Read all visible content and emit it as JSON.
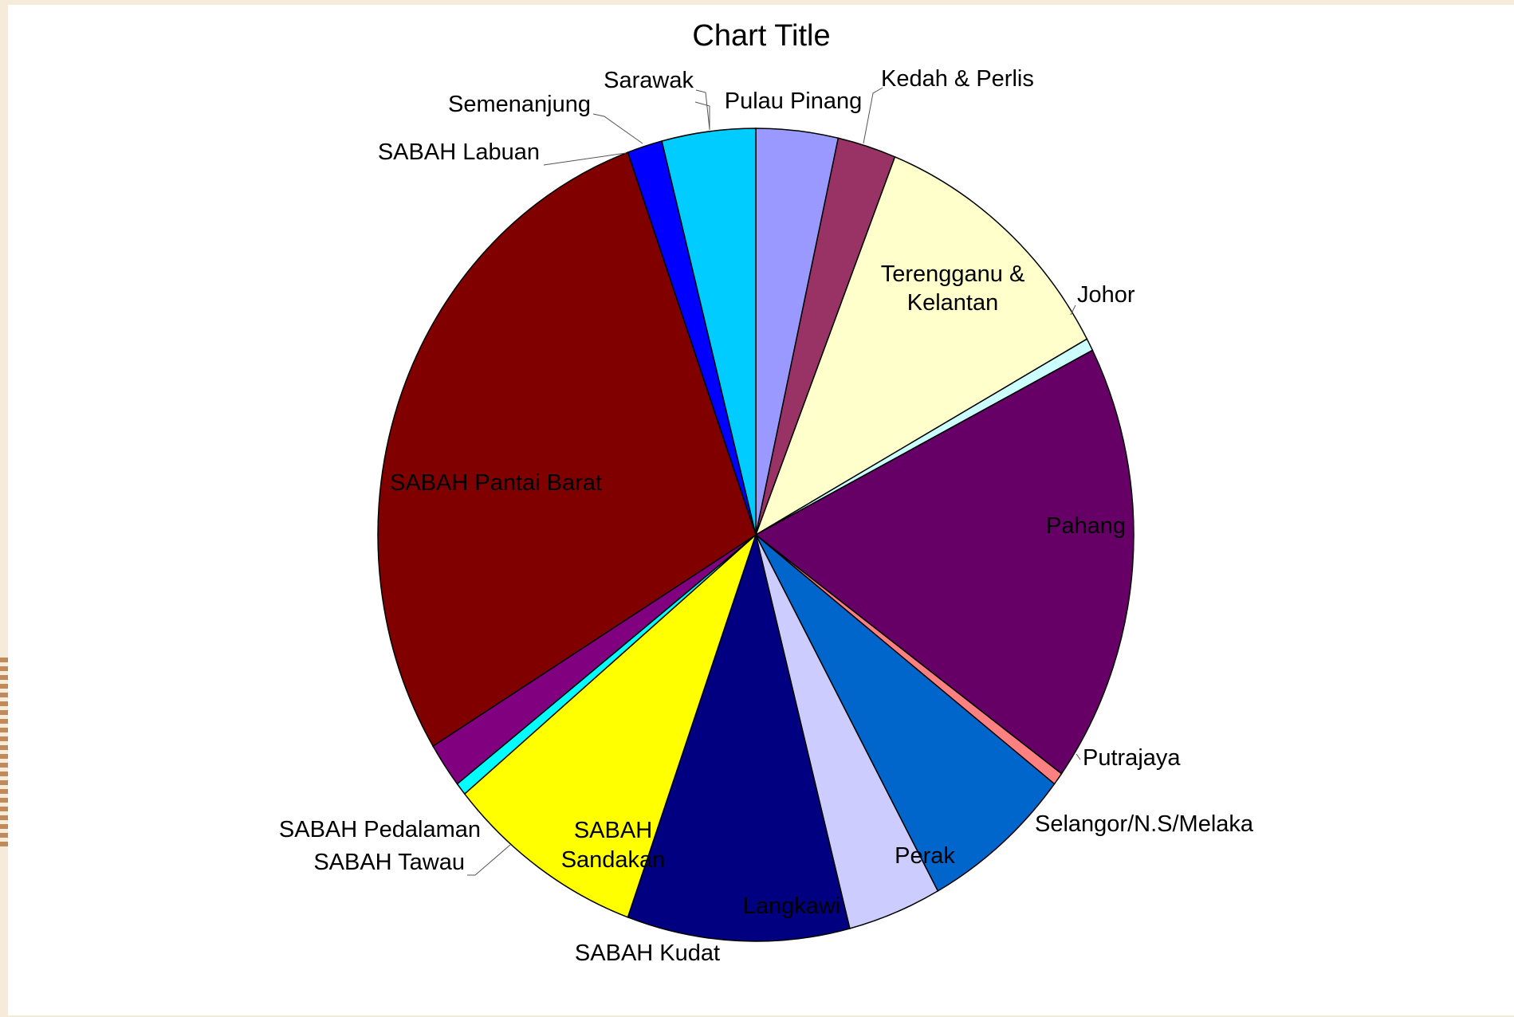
{
  "chart_data": {
    "type": "pie",
    "title": "Chart Title",
    "slices": [
      {
        "label": "Pulau Pinang",
        "value": 3.5,
        "color": "#9999ff"
      },
      {
        "label": "Kedah & Perlis",
        "value": 2.5,
        "color": "#993366"
      },
      {
        "label": "Terengganu & Kelantan",
        "value": 11.0,
        "color": "#ffffcc"
      },
      {
        "label": "Johor",
        "value": 0.5,
        "color": "#ccffff"
      },
      {
        "label": "Pahang",
        "value": 17.5,
        "color": "#660066"
      },
      {
        "label": "Putrajaya",
        "value": 0.5,
        "color": "#ff8080"
      },
      {
        "label": "Selangor/N.S/Melaka",
        "value": 6.5,
        "color": "#0066cc"
      },
      {
        "label": "Perak",
        "value": 4.0,
        "color": "#ccccff"
      },
      {
        "label": "Langkawi",
        "value": 9.5,
        "color": "#000080"
      },
      {
        "label": "SABAH Kudat",
        "value": 8.5,
        "color": "#ffff00"
      },
      {
        "label": "SABAH Tawau",
        "value": 0.5,
        "color": "#00ffff"
      },
      {
        "label": "SABAH Pedalaman",
        "value": 1.8,
        "color": "#800080"
      },
      {
        "label": "SABAH Pantai Barat",
        "value": 28.2,
        "color": "#800000"
      },
      {
        "label": "SABAH Labuan",
        "value": 0.0,
        "color": "#0000ff"
      },
      {
        "label": "Semenanjung",
        "value": 1.5,
        "color": "#0000ff"
      },
      {
        "label": "Sarawak",
        "value": 4.0,
        "color": "#00ccff"
      }
    ],
    "data_labels": [
      {
        "text": "Pulau Pinang"
      },
      {
        "text": "Kedah & Perlis"
      },
      {
        "text": "Terengganu &"
      },
      {
        "text": "Kelantan"
      },
      {
        "text": "Johor"
      },
      {
        "text": "Pahang"
      },
      {
        "text": "Putrajaya"
      },
      {
        "text": "Selangor/N.S/Melaka"
      },
      {
        "text": "Perak"
      },
      {
        "text": "Langkawi"
      },
      {
        "text": "SABAH Kudat"
      },
      {
        "text": "SABAH"
      },
      {
        "text": "Sandakan"
      },
      {
        "text": "SABAH Tawau"
      },
      {
        "text": "SABAH Pedalaman"
      },
      {
        "text": "SABAH Pantai Barat"
      },
      {
        "text": "SABAH Labuan"
      },
      {
        "text": "Semenanjung"
      },
      {
        "text": "Sarawak"
      }
    ],
    "legend": "none"
  }
}
